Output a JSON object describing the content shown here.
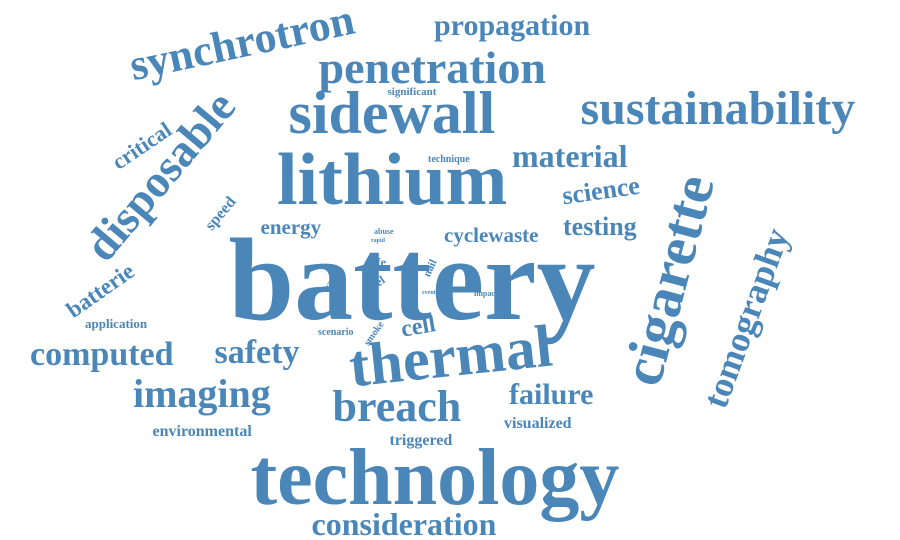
{
  "word_cloud": {
    "color": "#4a86b8",
    "words": [
      {
        "text": "battery"
      },
      {
        "text": "technology"
      },
      {
        "text": "lithium"
      },
      {
        "text": "sidewall"
      },
      {
        "text": "thermal"
      },
      {
        "text": "cigarette"
      },
      {
        "text": "sustainability"
      },
      {
        "text": "penetration"
      },
      {
        "text": "synchrotron"
      },
      {
        "text": "disposable"
      },
      {
        "text": "breach"
      },
      {
        "text": "tomography"
      },
      {
        "text": "imaging"
      },
      {
        "text": "computed"
      },
      {
        "text": "safety"
      },
      {
        "text": "consideration"
      },
      {
        "text": "propagation"
      },
      {
        "text": "material"
      },
      {
        "text": "failure"
      },
      {
        "text": "science"
      },
      {
        "text": "testing"
      },
      {
        "text": "cyclewaste"
      },
      {
        "text": "energy"
      },
      {
        "text": "cell"
      },
      {
        "text": "critical"
      },
      {
        "text": "batterie"
      },
      {
        "text": "environmental"
      },
      {
        "text": "visualized"
      },
      {
        "text": "triggered"
      },
      {
        "text": "speed"
      },
      {
        "text": "application"
      },
      {
        "text": "significant"
      },
      {
        "text": "technique"
      },
      {
        "text": "scenario"
      },
      {
        "text": "smoke"
      },
      {
        "text": "life"
      },
      {
        "text": "fuel"
      },
      {
        "text": "nail"
      },
      {
        "text": "hazard"
      },
      {
        "text": "abuse"
      },
      {
        "text": "rapid"
      },
      {
        "text": "impact"
      },
      {
        "text": "event"
      }
    ]
  }
}
